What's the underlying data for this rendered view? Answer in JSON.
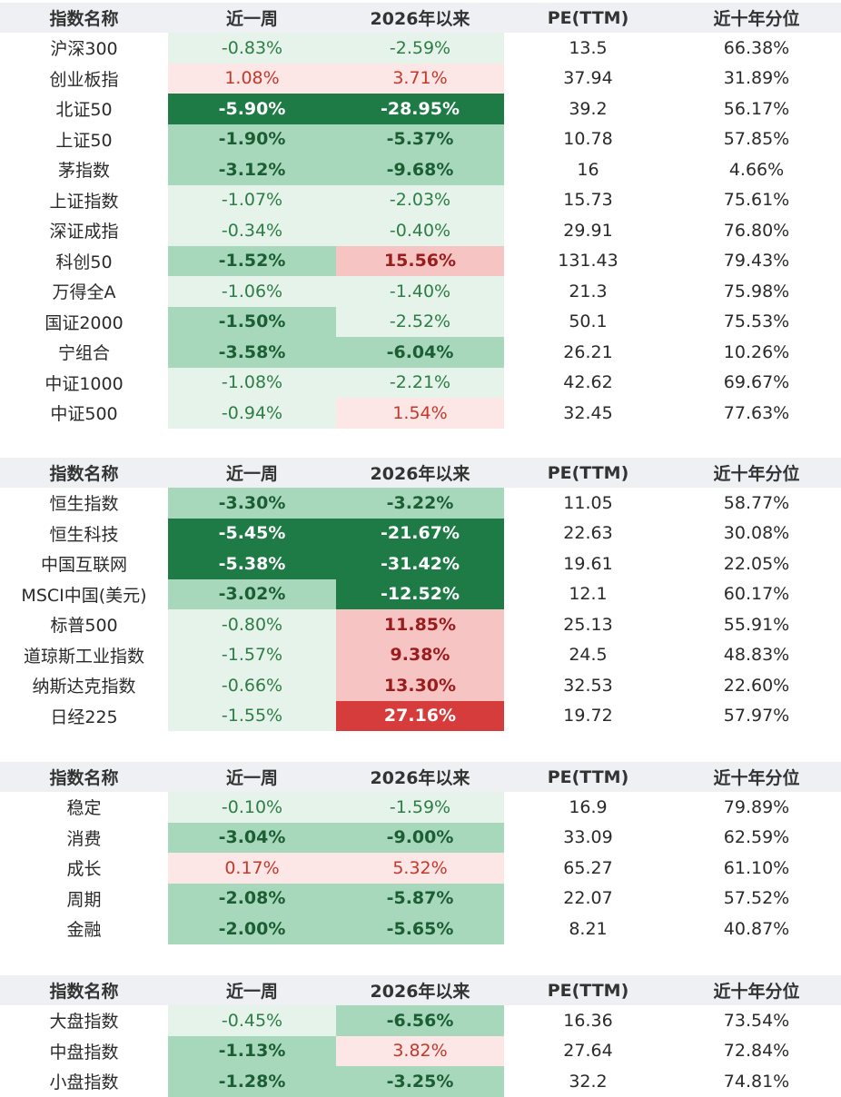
{
  "columns": [
    "指数名称",
    "近一周",
    "2026年以来",
    "PE(TTM)",
    "近十年分位"
  ],
  "palette": {
    "down_strong": "#1e7b45",
    "down_mid": "#a8d8bc",
    "down_light": "#e6f3ea",
    "up_light": "#fde6e6",
    "up_mid": "#f7c4c4",
    "up_strong": "#d63c3c",
    "text_down_dark": "#1c5e34",
    "text_down": "#2e7d46",
    "text_up_dark": "#9b1c1c",
    "text_up": "#c0392b",
    "text_white": "#ffffff"
  },
  "chart_data": {
    "type": "table",
    "columns": [
      "指数名称",
      "近一周",
      "2026年以来",
      "PE(TTM)",
      "近十年分位"
    ],
    "groups": [
      {
        "rows": [
          {
            "name": "沪深300",
            "week": "-0.83%",
            "week_level": "down_light",
            "ytd": "-2.59%",
            "ytd_level": "down_light",
            "pe": "13.5",
            "pct": "66.38%"
          },
          {
            "name": "创业板指",
            "week": "1.08%",
            "week_level": "up_light",
            "ytd": "3.71%",
            "ytd_level": "up_light",
            "pe": "37.94",
            "pct": "31.89%"
          },
          {
            "name": "北证50",
            "week": "-5.90%",
            "week_level": "down_strong",
            "ytd": "-28.95%",
            "ytd_level": "down_strong",
            "pe": "39.2",
            "pct": "56.17%"
          },
          {
            "name": "上证50",
            "week": "-1.90%",
            "week_level": "down_mid",
            "ytd": "-5.37%",
            "ytd_level": "down_mid",
            "pe": "10.78",
            "pct": "57.85%"
          },
          {
            "name": "茅指数",
            "week": "-3.12%",
            "week_level": "down_mid",
            "ytd": "-9.68%",
            "ytd_level": "down_mid",
            "pe": "16",
            "pct": "4.66%"
          },
          {
            "name": "上证指数",
            "week": "-1.07%",
            "week_level": "down_light",
            "ytd": "-2.03%",
            "ytd_level": "down_light",
            "pe": "15.73",
            "pct": "75.61%"
          },
          {
            "name": "深证成指",
            "week": "-0.34%",
            "week_level": "down_light",
            "ytd": "-0.40%",
            "ytd_level": "down_light",
            "pe": "29.91",
            "pct": "76.80%"
          },
          {
            "name": "科创50",
            "week": "-1.52%",
            "week_level": "down_mid",
            "ytd": "15.56%",
            "ytd_level": "up_mid",
            "pe": "131.43",
            "pct": "79.43%"
          },
          {
            "name": "万得全A",
            "week": "-1.06%",
            "week_level": "down_light",
            "ytd": "-1.40%",
            "ytd_level": "down_light",
            "pe": "21.3",
            "pct": "75.98%"
          },
          {
            "name": "国证2000",
            "week": "-1.50%",
            "week_level": "down_mid",
            "ytd": "-2.52%",
            "ytd_level": "down_light",
            "pe": "50.1",
            "pct": "75.53%"
          },
          {
            "name": "宁组合",
            "week": "-3.58%",
            "week_level": "down_mid",
            "ytd": "-6.04%",
            "ytd_level": "down_mid",
            "pe": "26.21",
            "pct": "10.26%"
          },
          {
            "name": "中证1000",
            "week": "-1.08%",
            "week_level": "down_light",
            "ytd": "-2.21%",
            "ytd_level": "down_light",
            "pe": "42.62",
            "pct": "69.67%"
          },
          {
            "name": "中证500",
            "week": "-0.94%",
            "week_level": "down_light",
            "ytd": "1.54%",
            "ytd_level": "up_light",
            "pe": "32.45",
            "pct": "77.63%"
          }
        ]
      },
      {
        "rows": [
          {
            "name": "恒生指数",
            "week": "-3.30%",
            "week_level": "down_mid",
            "ytd": "-3.22%",
            "ytd_level": "down_mid",
            "pe": "11.05",
            "pct": "58.77%"
          },
          {
            "name": "恒生科技",
            "week": "-5.45%",
            "week_level": "down_strong",
            "ytd": "-21.67%",
            "ytd_level": "down_strong",
            "pe": "22.63",
            "pct": "30.08%"
          },
          {
            "name": "中国互联网",
            "week": "-5.38%",
            "week_level": "down_strong",
            "ytd": "-31.42%",
            "ytd_level": "down_strong",
            "pe": "19.61",
            "pct": "22.05%"
          },
          {
            "name": "MSCI中国(美元)",
            "week": "-3.02%",
            "week_level": "down_mid",
            "ytd": "-12.52%",
            "ytd_level": "down_strong",
            "pe": "12.1",
            "pct": "60.17%"
          },
          {
            "name": "标普500",
            "week": "-0.80%",
            "week_level": "down_light",
            "ytd": "11.85%",
            "ytd_level": "up_mid",
            "pe": "25.13",
            "pct": "55.91%"
          },
          {
            "name": "道琼斯工业指数",
            "week": "-1.57%",
            "week_level": "down_light",
            "ytd": "9.38%",
            "ytd_level": "up_mid",
            "pe": "24.5",
            "pct": "48.83%"
          },
          {
            "name": "纳斯达克指数",
            "week": "-0.66%",
            "week_level": "down_light",
            "ytd": "13.30%",
            "ytd_level": "up_mid",
            "pe": "32.53",
            "pct": "22.60%"
          },
          {
            "name": "日经225",
            "week": "-1.55%",
            "week_level": "down_light",
            "ytd": "27.16%",
            "ytd_level": "up_strong",
            "pe": "19.72",
            "pct": "57.97%"
          }
        ]
      },
      {
        "rows": [
          {
            "name": "稳定",
            "week": "-0.10%",
            "week_level": "down_light",
            "ytd": "-1.59%",
            "ytd_level": "down_light",
            "pe": "16.9",
            "pct": "79.89%"
          },
          {
            "name": "消费",
            "week": "-3.04%",
            "week_level": "down_mid",
            "ytd": "-9.00%",
            "ytd_level": "down_mid",
            "pe": "33.09",
            "pct": "62.59%"
          },
          {
            "name": "成长",
            "week": "0.17%",
            "week_level": "up_light",
            "ytd": "5.32%",
            "ytd_level": "up_light",
            "pe": "65.27",
            "pct": "61.10%"
          },
          {
            "name": "周期",
            "week": "-2.08%",
            "week_level": "down_mid",
            "ytd": "-5.87%",
            "ytd_level": "down_mid",
            "pe": "22.07",
            "pct": "57.52%"
          },
          {
            "name": "金融",
            "week": "-2.00%",
            "week_level": "down_mid",
            "ytd": "-5.65%",
            "ytd_level": "down_mid",
            "pe": "8.21",
            "pct": "40.87%"
          }
        ]
      },
      {
        "rows": [
          {
            "name": "大盘指数",
            "week": "-0.45%",
            "week_level": "down_light",
            "ytd": "-6.56%",
            "ytd_level": "down_mid",
            "pe": "16.36",
            "pct": "73.54%"
          },
          {
            "name": "中盘指数",
            "week": "-1.13%",
            "week_level": "down_mid",
            "ytd": "3.82%",
            "ytd_level": "up_light",
            "pe": "27.64",
            "pct": "72.84%"
          },
          {
            "name": "小盘指数",
            "week": "-1.28%",
            "week_level": "down_mid",
            "ytd": "-3.25%",
            "ytd_level": "down_mid",
            "pe": "32.2",
            "pct": "74.81%"
          }
        ]
      }
    ]
  }
}
